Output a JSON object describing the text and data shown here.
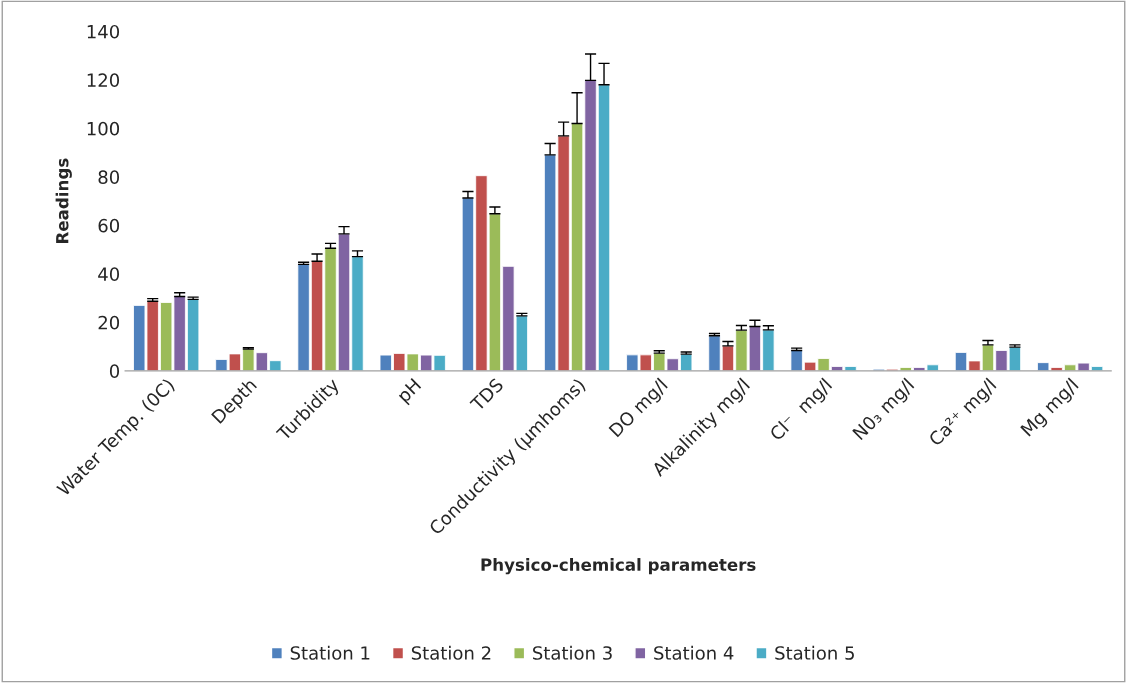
{
  "chart_data": {
    "type": "bar",
    "xlabel": "Physico-chemical parameters",
    "ylabel": "Readings",
    "categories": [
      "Water Temp. (0C)",
      "Depth",
      "Turbidity",
      "pH",
      "TDS",
      "Conductivity (µmhoms)",
      "DO mg/l",
      "Alkalinity mg/l",
      "Cl⁻  mg/l",
      "N0₃ mg/l",
      "Ca²⁺ mg/l",
      "Mg mg/l"
    ],
    "series": [
      {
        "name": "Station 1",
        "color": "#4f81bd",
        "values": [
          27,
          4.7,
          43.9,
          6.5,
          71.3,
          89.1,
          6.6,
          14.5,
          8.4,
          0.7,
          7.6,
          3.4
        ],
        "errors": [
          null,
          null,
          [
            43.9,
            44.8
          ],
          null,
          [
            71.3,
            74
          ],
          [
            89.1,
            93.8
          ],
          null,
          [
            14.5,
            15.4
          ],
          [
            8.4,
            9.4
          ],
          null,
          null,
          null
        ]
      },
      {
        "name": "Station 2",
        "color": "#c0504d",
        "values": [
          28.7,
          7,
          45.2,
          7.2,
          80.5,
          96.9,
          6.6,
          10.3,
          3.6,
          0.7,
          4.1,
          1.4
        ],
        "errors": [
          [
            28.7,
            29.8
          ],
          null,
          [
            45.2,
            48.2
          ],
          null,
          null,
          [
            96.9,
            102.6
          ],
          null,
          [
            10.3,
            12.1
          ],
          null,
          null,
          null,
          null
        ]
      },
      {
        "name": "Station 3",
        "color": "#9bbb59",
        "values": [
          28.2,
          9,
          50.6,
          7,
          64.8,
          102,
          7.3,
          16.8,
          5.1,
          1.4,
          10.7,
          2.5
        ],
        "errors": [
          null,
          [
            9,
            9.6
          ],
          [
            50.6,
            52.6
          ],
          null,
          [
            64.8,
            67.6
          ],
          [
            102,
            114.7
          ],
          [
            7.3,
            8.3
          ],
          [
            16.8,
            18.7
          ],
          null,
          null,
          [
            10.7,
            12.5
          ],
          null
        ]
      },
      {
        "name": "Station 4",
        "color": "#8064a2",
        "values": [
          30.7,
          7.5,
          56.5,
          6.5,
          43.1,
          119.8,
          5,
          18.3,
          1.8,
          1.4,
          8.4,
          3.2
        ],
        "errors": [
          [
            30.7,
            32.2
          ],
          null,
          [
            56.5,
            59.5
          ],
          null,
          null,
          [
            119.8,
            130.7
          ],
          null,
          [
            18.3,
            20.9
          ],
          null,
          null,
          null,
          null
        ]
      },
      {
        "name": "Station 5",
        "color": "#4bacc6",
        "values": [
          29.5,
          4.2,
          47.1,
          6.4,
          22.7,
          118,
          6.9,
          16.9,
          1.8,
          2.5,
          9.8,
          1.8
        ],
        "errors": [
          [
            29.5,
            30.4
          ],
          null,
          [
            47.1,
            49.5
          ],
          null,
          [
            22.7,
            23.7
          ],
          [
            118,
            126.8
          ],
          [
            6.9,
            7.8
          ],
          [
            16.9,
            18.6
          ],
          null,
          null,
          [
            9.8,
            10.7
          ],
          null
        ]
      }
    ],
    "ylim": [
      0,
      140
    ],
    "yticks": [
      0,
      20,
      40,
      60,
      80,
      100,
      120,
      140
    ],
    "grid": false,
    "legend": "bottom"
  }
}
